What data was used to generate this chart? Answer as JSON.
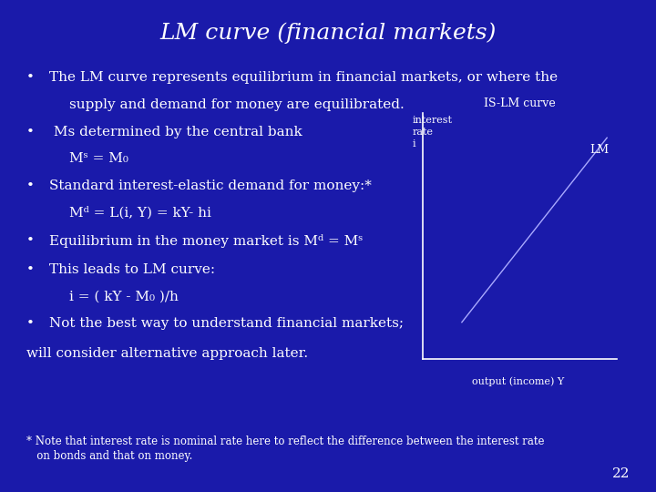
{
  "title": "LM curve (financial markets)",
  "title_color": "#FFFFFF",
  "title_fontsize": 18,
  "bg_color": "#1a1aaa",
  "bullet_points_line1": [
    "The LM curve represents equilibrium in financial markets, or where the",
    " Ms determined by the central bank",
    "Standard interest-elastic demand for money:*",
    "Equilibrium in the money market is Mᵈ = Mˢ",
    "This leads to LM curve:",
    "Not the best way to understand financial markets;"
  ],
  "bullet_points_line2": [
    "supply and demand for money are equilibrated.",
    "Mˢ = M₀",
    "Mᵈ = L(i, Y) = kY- hi",
    "",
    "i = ( kY - M₀ )/h",
    ""
  ],
  "extra_line": "will consider alternative approach later.",
  "footnote_line1": "* Note that interest rate is nominal rate here to reflect the difference between the interest rate",
  "footnote_line2": "   on bonds and that on money.",
  "page_number": "22",
  "chart_title": "IS-LM curve",
  "chart_xlabel": "output (income) Y",
  "chart_ylabel_line1": "interest",
  "chart_ylabel_line2": "rate",
  "chart_ylabel_line3": "i",
  "lm_label": "LM",
  "text_color": "#FFFFFF",
  "chart_line_color": "#AAAAFF",
  "bullet_fontsize": 11,
  "footnote_fontsize": 8.5,
  "chart_fontsize": 8
}
